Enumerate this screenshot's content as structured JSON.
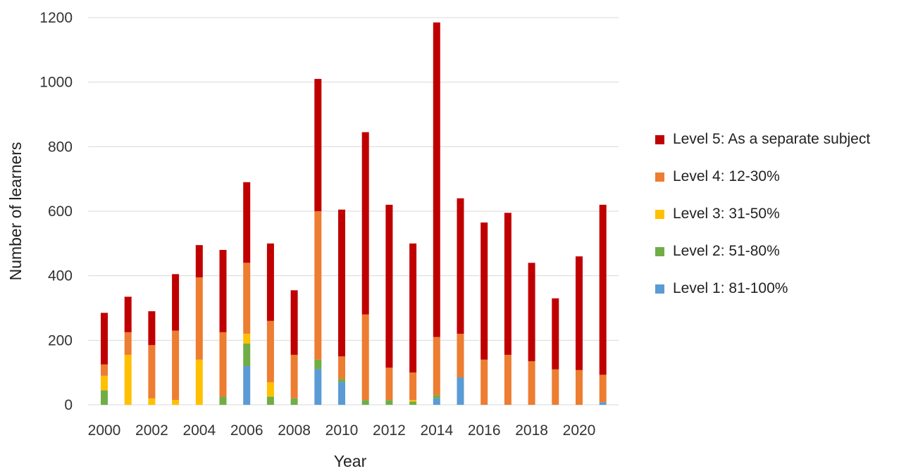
{
  "chart_data": {
    "type": "bar",
    "stacked": true,
    "xlabel": "Year",
    "ylabel": "Number of learners",
    "ylim": [
      0,
      1200
    ],
    "yticks": [
      0,
      200,
      400,
      600,
      800,
      1000,
      1200
    ],
    "grid": true,
    "legend_position": "right",
    "categories": [
      "2000",
      "2001",
      "2002",
      "2003",
      "2004",
      "2005",
      "2006",
      "2007",
      "2008",
      "2009",
      "2010",
      "2011",
      "2012",
      "2013",
      "2014",
      "2015",
      "2016",
      "2017",
      "2018",
      "2019",
      "2020",
      "2021"
    ],
    "x_tick_labels": [
      "2000",
      "2002",
      "2004",
      "2006",
      "2008",
      "2010",
      "2012",
      "2014",
      "2016",
      "2018",
      "2020"
    ],
    "series": [
      {
        "name": "Level 1: 81-100%",
        "color": "#5b9bd5",
        "values": [
          0,
          0,
          0,
          0,
          0,
          0,
          120,
          0,
          0,
          110,
          70,
          0,
          0,
          0,
          20,
          85,
          0,
          0,
          0,
          0,
          0,
          8
        ]
      },
      {
        "name": "Level 2: 51-80%",
        "color": "#70ad47",
        "values": [
          45,
          0,
          0,
          0,
          0,
          25,
          70,
          25,
          20,
          30,
          10,
          15,
          15,
          10,
          10,
          0,
          0,
          0,
          0,
          0,
          0,
          0
        ]
      },
      {
        "name": "Level 3: 31-50%",
        "color": "#ffc000",
        "values": [
          45,
          155,
          20,
          15,
          140,
          0,
          30,
          45,
          0,
          0,
          0,
          0,
          0,
          5,
          0,
          0,
          0,
          0,
          0,
          0,
          0,
          0
        ]
      },
      {
        "name": "Level 4: 12-30%",
        "color": "#ed7d31",
        "values": [
          35,
          70,
          165,
          215,
          255,
          200,
          220,
          190,
          135,
          460,
          70,
          265,
          100,
          85,
          180,
          135,
          140,
          155,
          135,
          110,
          108,
          85
        ]
      },
      {
        "name": "Level 5: As a separate subject",
        "color": "#c00000",
        "values": [
          160,
          110,
          105,
          175,
          100,
          255,
          250,
          240,
          200,
          410,
          455,
          565,
          505,
          400,
          975,
          420,
          425,
          440,
          305,
          220,
          352,
          527
        ]
      }
    ]
  }
}
